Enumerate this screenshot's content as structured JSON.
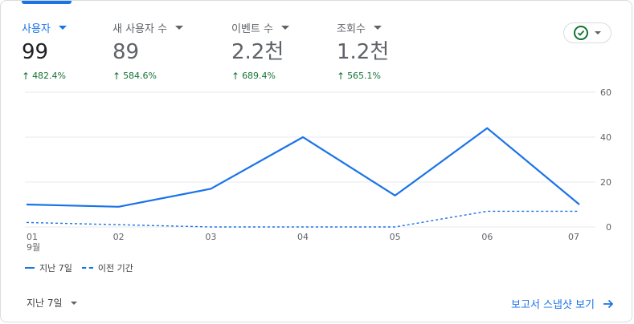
{
  "metrics": [
    {
      "label": "사용자",
      "value": "99",
      "delta": "482.4%",
      "active": true
    },
    {
      "label": "새 사용자 수",
      "value": "89",
      "delta": "584.6%",
      "active": false
    },
    {
      "label": "이벤트 수",
      "value": "2.2천",
      "delta": "689.4%",
      "active": false
    },
    {
      "label": "조회수",
      "value": "1.2천",
      "delta": "565.1%",
      "active": false
    }
  ],
  "status_icon": "check-circle-icon",
  "legend": {
    "current": "지난 7일",
    "previous": "이전 기간"
  },
  "footer": {
    "period_label": "지난 7일",
    "report_link": "보고서 스냅샷 보기"
  },
  "colors": {
    "accent": "#1a73e8",
    "positive": "#137333"
  },
  "chart_data": {
    "type": "line",
    "x": [
      "01",
      "02",
      "03",
      "04",
      "05",
      "06",
      "07"
    ],
    "x_sublabel": "9월",
    "ylim": [
      0,
      60
    ],
    "y_ticks": [
      0,
      20,
      40,
      60
    ],
    "grid": true,
    "y_axis_side": "right",
    "series": [
      {
        "name": "지난 7일",
        "values": [
          10,
          9,
          17,
          40,
          14,
          44,
          10
        ],
        "style": "solid"
      },
      {
        "name": "이전 기간",
        "values": [
          2,
          1,
          0,
          0,
          0,
          7,
          7
        ],
        "style": "dashed"
      }
    ]
  }
}
